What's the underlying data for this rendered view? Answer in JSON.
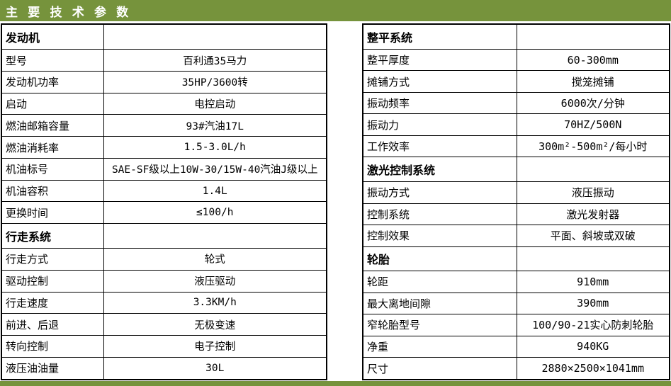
{
  "page": {
    "title": "主 要 技 术 参 数",
    "accent_color": "#76933C"
  },
  "left_table": {
    "rows": [
      {
        "label": "发动机",
        "value": "",
        "section": true
      },
      {
        "label": "型号",
        "value": "百利通35马力",
        "section": false
      },
      {
        "label": "发动机功率",
        "value": "35HP/3600转",
        "section": false
      },
      {
        "label": "启动",
        "value": "电控启动",
        "section": false
      },
      {
        "label": "燃油邮箱容量",
        "value": "93#汽油17L",
        "section": false
      },
      {
        "label": "燃油消耗率",
        "value": "1.5-3.0L/h",
        "section": false
      },
      {
        "label": "机油标号",
        "value": "SAE-SF级以上10W-30/15W-40汽油J级以上",
        "section": false
      },
      {
        "label": "机油容积",
        "value": "1.4L",
        "section": false
      },
      {
        "label": "更换时间",
        "value": "≤100/h",
        "section": false
      },
      {
        "label": "行走系统",
        "value": "",
        "section": true
      },
      {
        "label": "行走方式",
        "value": "轮式",
        "section": false
      },
      {
        "label": "驱动控制",
        "value": "液压驱动",
        "section": false
      },
      {
        "label": "行走速度",
        "value": "3.3KM/h",
        "section": false
      },
      {
        "label": "前进、后退",
        "value": "无极变速",
        "section": false
      },
      {
        "label": "转向控制",
        "value": "电子控制",
        "section": false
      },
      {
        "label": "液压油油量",
        "value": "30L",
        "section": false
      }
    ]
  },
  "right_table": {
    "rows": [
      {
        "label": "整平系统",
        "value": "",
        "section": true
      },
      {
        "label": "整平厚度",
        "value": "60-300mm",
        "section": false
      },
      {
        "label": "摊铺方式",
        "value": "搅笼摊铺",
        "section": false
      },
      {
        "label": "振动频率",
        "value": "6000次/分钟",
        "section": false
      },
      {
        "label": "振动力",
        "value": "70HZ/500N",
        "section": false
      },
      {
        "label": "工作效率",
        "value": "300m²-500m²/每小时",
        "section": false
      },
      {
        "label": "激光控制系统",
        "value": "",
        "section": true
      },
      {
        "label": "振动方式",
        "value": "液压振动",
        "section": false
      },
      {
        "label": "控制系统",
        "value": "激光发射器",
        "section": false
      },
      {
        "label": "控制效果",
        "value": "平面、斜坡或双破",
        "section": false
      },
      {
        "label": "轮胎",
        "value": "",
        "section": true
      },
      {
        "label": "轮距",
        "value": "910mm",
        "section": false
      },
      {
        "label": "最大离地间隙",
        "value": "390mm",
        "section": false
      },
      {
        "label": "窄轮胎型号",
        "value": "100/90-21实心防刺轮胎",
        "section": false
      },
      {
        "label": "净重",
        "value": "940KG",
        "section": false
      },
      {
        "label": "尺寸",
        "value": "2880×2500×1041mm",
        "section": false
      }
    ]
  }
}
